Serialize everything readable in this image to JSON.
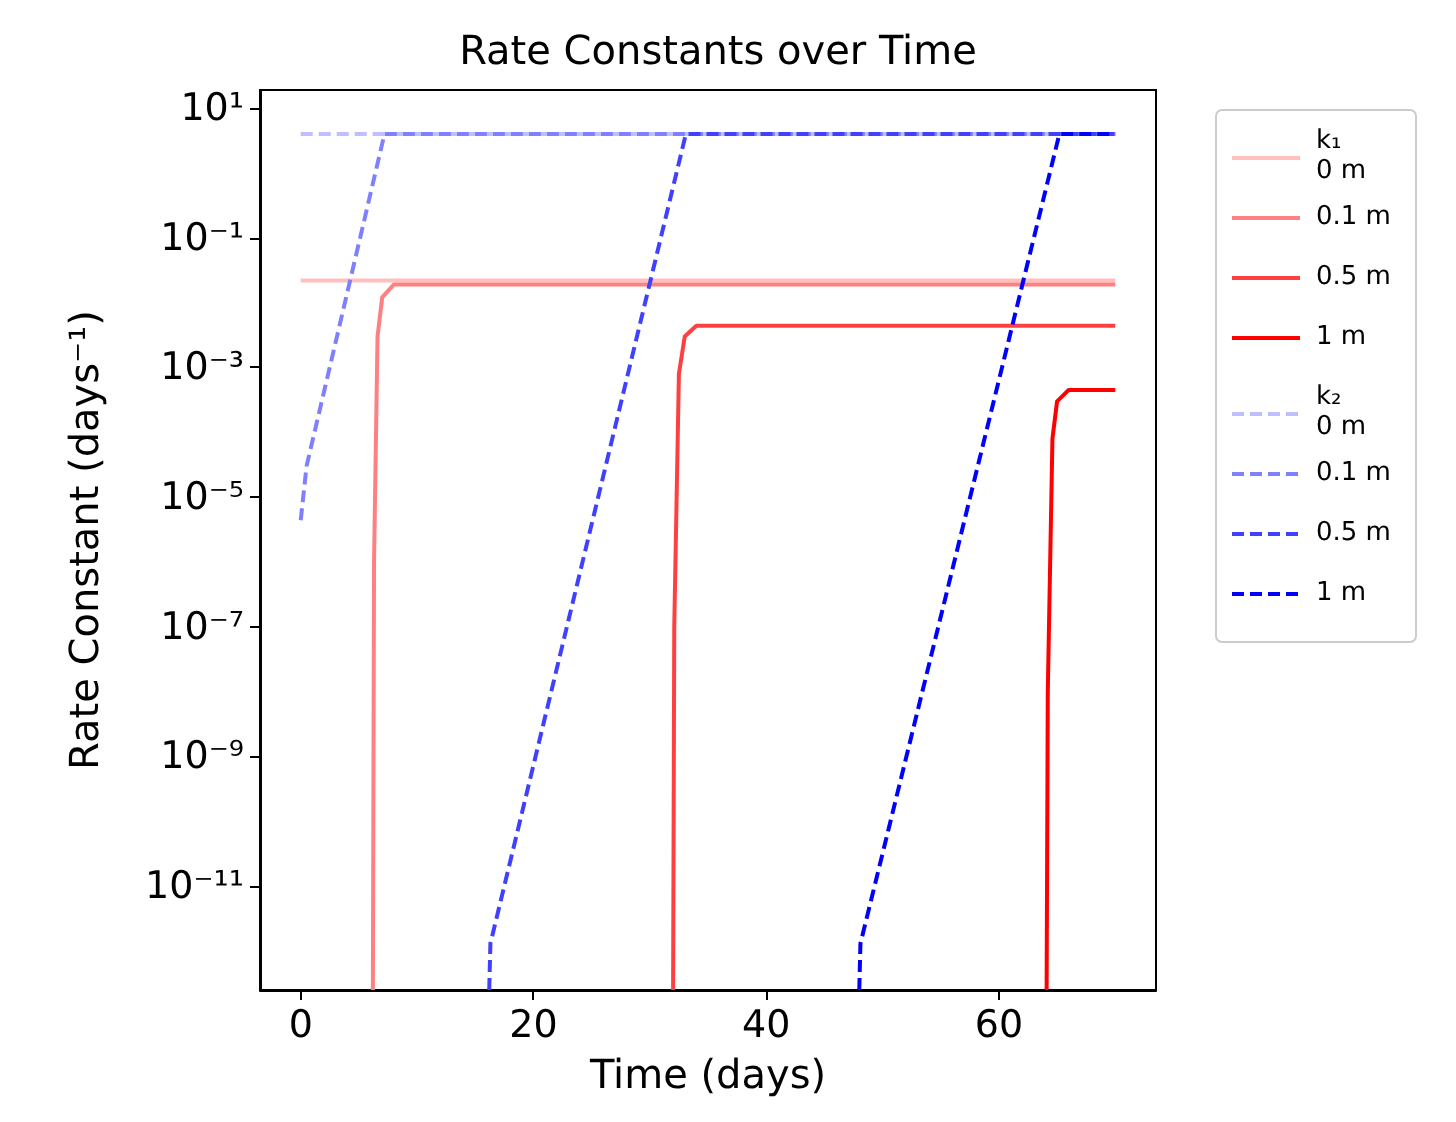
{
  "chart_data": {
    "type": "line",
    "title": "Rate Constants over Time",
    "xlabel": "Time (days)",
    "ylabel": "Rate Constant (days⁻¹)",
    "log": "y",
    "grid": false,
    "legend": "right",
    "marker": "none",
    "xlim": [
      -3.5,
      73.5
    ],
    "xticks": [
      0,
      20,
      40,
      60
    ],
    "ylim": [
      2.5e-13,
      19
    ],
    "yticks": [
      {
        "value": 10,
        "label": "10¹"
      },
      {
        "value": 0.1,
        "label": "10⁻¹"
      },
      {
        "value": 0.001,
        "label": "10⁻³"
      },
      {
        "value": 1e-05,
        "label": "10⁻⁵"
      },
      {
        "value": 1e-07,
        "label": "10⁻⁷"
      },
      {
        "value": 1e-09,
        "label": "10⁻⁹"
      },
      {
        "value": 1e-11,
        "label": "10⁻¹¹"
      }
    ],
    "series": [
      {
        "name": "k₁\n0 m",
        "color": "#ffbfbf",
        "line_style": "solid",
        "x": [
          0,
          70
        ],
        "values": [
          0.022,
          0.022
        ]
      },
      {
        "name": "0.1 m",
        "color": "#ff8080",
        "line_style": "solid",
        "x": [
          6.2,
          6.3,
          6.6,
          7,
          8,
          70
        ],
        "values": [
          2.5e-13,
          1e-06,
          0.003,
          0.012,
          0.019,
          0.019
        ]
      },
      {
        "name": "0.5 m",
        "color": "#ff4040",
        "line_style": "solid",
        "x": [
          32,
          32.1,
          32.5,
          33,
          34,
          70
        ],
        "values": [
          2.5e-13,
          1e-07,
          0.0008,
          0.003,
          0.0044,
          0.0044
        ]
      },
      {
        "name": "1 m",
        "color": "#ff0000",
        "line_style": "solid",
        "x": [
          64.1,
          64.2,
          64.6,
          65,
          66,
          70
        ],
        "values": [
          2.5e-13,
          1e-08,
          8e-05,
          0.0003,
          0.00045,
          0.00045
        ]
      },
      {
        "name": "k₂\n0 m",
        "color": "#bfbfff",
        "line_style": "dashed",
        "x": [
          0,
          70
        ],
        "values": [
          4,
          4
        ]
      },
      {
        "name": "0.1 m",
        "color": "#8080ff",
        "line_style": "dashed",
        "x": [
          0,
          0.5,
          7.2,
          70
        ],
        "values": [
          4.4e-06,
          3e-05,
          4,
          4
        ]
      },
      {
        "name": "0.5 m",
        "color": "#4040ff",
        "line_style": "dashed",
        "x": [
          16.2,
          16.3,
          33.1,
          70
        ],
        "values": [
          2.5e-13,
          1.3e-12,
          4,
          4
        ]
      },
      {
        "name": "1 m",
        "color": "#0000ff",
        "line_style": "dashed",
        "x": [
          48,
          48.1,
          65.2,
          70
        ],
        "values": [
          2.5e-13,
          1.3e-12,
          4,
          4
        ]
      }
    ]
  }
}
